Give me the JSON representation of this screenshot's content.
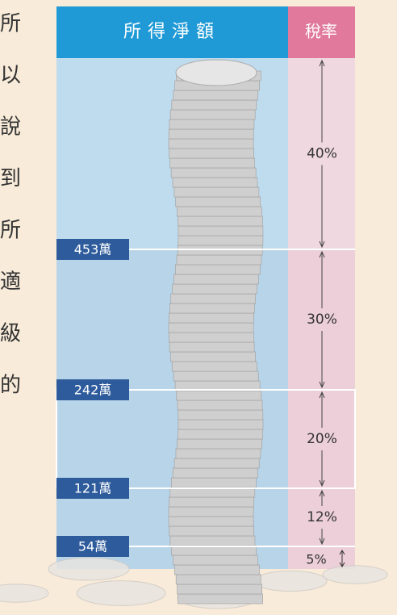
{
  "side_text": [
    "所",
    "以",
    "說",
    "到",
    "所",
    "適",
    "級",
    "的"
  ],
  "header": {
    "income": "所得淨額",
    "rate": "稅率"
  },
  "thresholds": [
    "453萬",
    "242萬",
    "121萬",
    "54萬"
  ],
  "rates": [
    "40%",
    "30%",
    "20%",
    "12%",
    "5%"
  ]
}
